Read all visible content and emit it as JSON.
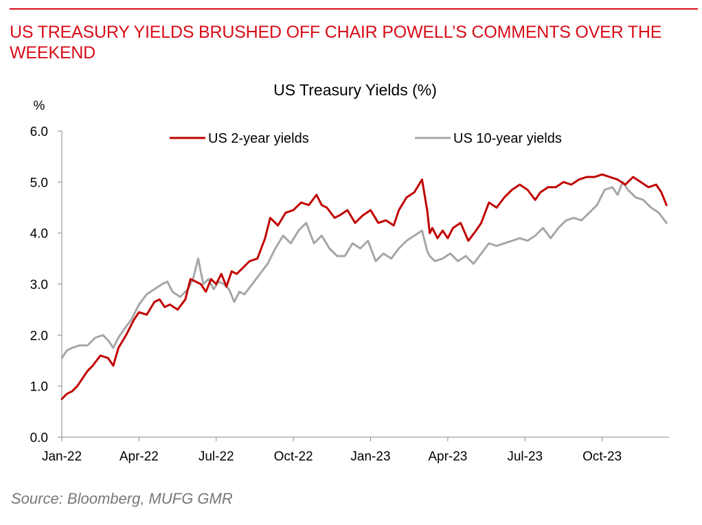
{
  "header": {
    "headline": "US TREASURY YIELDS BRUSHED OFF CHAIR POWELL’S COMMENTS OVER THE WEEKEND"
  },
  "footer": {
    "source": "Source: Bloomberg, MUFG GMR"
  },
  "colors": {
    "accent": "#d80c18",
    "series_2y": "#c00000",
    "series_10y": "#a6a6a6",
    "axis": "#888888"
  },
  "chart_data": {
    "type": "line",
    "title": "US Treasury Yields (%)",
    "ylabel": "%",
    "xlabel": "",
    "ylim": [
      0,
      6
    ],
    "yticks": [
      "0.0",
      "1.0",
      "2.0",
      "3.0",
      "4.0",
      "5.0",
      "6.0"
    ],
    "xlim": [
      0,
      23.6
    ],
    "xticks": [
      {
        "label": "Jan-22",
        "t": 0
      },
      {
        "label": "Apr-22",
        "t": 3
      },
      {
        "label": "Jul-22",
        "t": 6
      },
      {
        "label": "Oct-22",
        "t": 9
      },
      {
        "label": "Jan-23",
        "t": 12
      },
      {
        "label": "Apr-23",
        "t": 15
      },
      {
        "label": "Jul-23",
        "t": 18
      },
      {
        "label": "Oct-23",
        "t": 21
      }
    ],
    "legend": "top",
    "series": [
      {
        "name": "US 2-year yields",
        "x": [
          0,
          0.2,
          0.4,
          0.6,
          0.8,
          1.0,
          1.2,
          1.5,
          1.8,
          2.0,
          2.2,
          2.5,
          2.8,
          3.0,
          3.3,
          3.6,
          3.8,
          4.0,
          4.2,
          4.5,
          4.8,
          5.0,
          5.2,
          5.4,
          5.6,
          5.8,
          6.0,
          6.2,
          6.4,
          6.6,
          6.8,
          7.0,
          7.3,
          7.6,
          7.9,
          8.1,
          8.4,
          8.7,
          9.0,
          9.3,
          9.6,
          9.9,
          10.1,
          10.3,
          10.6,
          10.8,
          11.1,
          11.4,
          11.7,
          12.0,
          12.3,
          12.6,
          12.9,
          13.1,
          13.4,
          13.7,
          14.0,
          14.2,
          14.3,
          14.4,
          14.6,
          14.8,
          15.0,
          15.2,
          15.5,
          15.8,
          16.1,
          16.3,
          16.6,
          16.9,
          17.2,
          17.5,
          17.8,
          18.1,
          18.4,
          18.6,
          18.9,
          19.2,
          19.5,
          19.8,
          20.1,
          20.4,
          20.7,
          21.0,
          21.3,
          21.6,
          21.9,
          22.2,
          22.5,
          22.8,
          23.1,
          23.3,
          23.5
        ],
        "values": [
          0.75,
          0.85,
          0.9,
          1.0,
          1.15,
          1.3,
          1.4,
          1.6,
          1.55,
          1.4,
          1.75,
          2.0,
          2.3,
          2.45,
          2.4,
          2.65,
          2.7,
          2.55,
          2.6,
          2.5,
          2.7,
          3.1,
          3.05,
          3.0,
          2.85,
          3.1,
          3.0,
          3.2,
          2.95,
          3.25,
          3.2,
          3.3,
          3.45,
          3.5,
          3.9,
          4.3,
          4.15,
          4.4,
          4.45,
          4.6,
          4.55,
          4.75,
          4.55,
          4.5,
          4.3,
          4.35,
          4.45,
          4.2,
          4.35,
          4.45,
          4.2,
          4.25,
          4.15,
          4.45,
          4.7,
          4.8,
          5.05,
          4.45,
          4.0,
          4.1,
          3.9,
          4.05,
          3.9,
          4.1,
          4.2,
          3.85,
          4.05,
          4.2,
          4.6,
          4.5,
          4.7,
          4.85,
          4.95,
          4.85,
          4.65,
          4.8,
          4.9,
          4.9,
          5.0,
          4.95,
          5.05,
          5.1,
          5.1,
          5.15,
          5.1,
          5.05,
          4.95,
          5.1,
          5.0,
          4.9,
          4.95,
          4.8,
          4.55
        ]
      },
      {
        "name": "US 10-year yields",
        "x": [
          0,
          0.2,
          0.4,
          0.7,
          1.0,
          1.3,
          1.6,
          1.8,
          2.0,
          2.2,
          2.4,
          2.7,
          3.0,
          3.3,
          3.6,
          3.9,
          4.1,
          4.3,
          4.6,
          4.9,
          5.1,
          5.3,
          5.5,
          5.7,
          5.9,
          6.1,
          6.3,
          6.5,
          6.7,
          6.9,
          7.1,
          7.4,
          7.7,
          8.0,
          8.3,
          8.6,
          8.9,
          9.2,
          9.5,
          9.8,
          10.1,
          10.4,
          10.7,
          11.0,
          11.3,
          11.6,
          11.9,
          12.2,
          12.5,
          12.8,
          13.1,
          13.4,
          13.7,
          14.0,
          14.2,
          14.3,
          14.5,
          14.8,
          15.1,
          15.4,
          15.7,
          16.0,
          16.3,
          16.6,
          16.9,
          17.2,
          17.5,
          17.8,
          18.1,
          18.4,
          18.7,
          19.0,
          19.3,
          19.6,
          19.9,
          20.2,
          20.5,
          20.8,
          21.1,
          21.4,
          21.6,
          21.8,
          22.0,
          22.3,
          22.6,
          22.9,
          23.2,
          23.5
        ],
        "values": [
          1.55,
          1.7,
          1.75,
          1.8,
          1.8,
          1.95,
          2.0,
          1.9,
          1.75,
          1.95,
          2.1,
          2.3,
          2.6,
          2.8,
          2.9,
          3.0,
          3.05,
          2.85,
          2.75,
          2.9,
          3.1,
          3.5,
          3.0,
          3.1,
          2.9,
          3.05,
          3.0,
          2.9,
          2.65,
          2.85,
          2.8,
          3.0,
          3.2,
          3.4,
          3.7,
          3.95,
          3.8,
          4.05,
          4.2,
          3.8,
          3.95,
          3.7,
          3.55,
          3.55,
          3.8,
          3.7,
          3.85,
          3.45,
          3.6,
          3.5,
          3.7,
          3.85,
          3.95,
          4.05,
          3.65,
          3.55,
          3.45,
          3.5,
          3.6,
          3.45,
          3.55,
          3.4,
          3.6,
          3.8,
          3.75,
          3.8,
          3.85,
          3.9,
          3.85,
          3.95,
          4.1,
          3.9,
          4.1,
          4.25,
          4.3,
          4.25,
          4.4,
          4.55,
          4.85,
          4.9,
          4.75,
          5.0,
          4.85,
          4.7,
          4.65,
          4.5,
          4.4,
          4.2
        ]
      }
    ]
  }
}
